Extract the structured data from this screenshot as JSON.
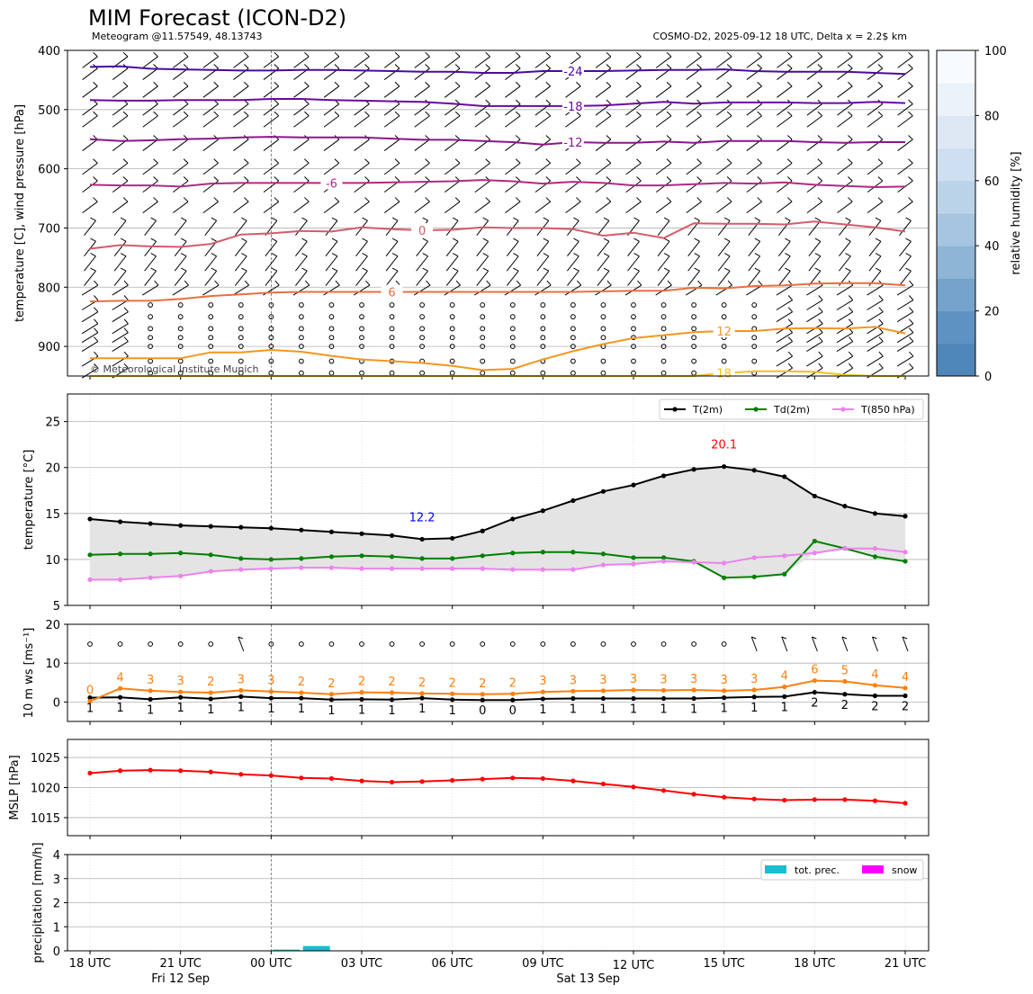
{
  "figure": {
    "title": "MIM Forecast (ICON-D2)",
    "subtitle_left": "Meteogram @11.57549, 48.13743",
    "subtitle_right": "COSMO-D2, 2025-09-12 18 UTC, Delta x = 2.2$ km",
    "copyright": "© Meteorological Institute Munich",
    "time_axis": {
      "ticks": [
        "18 UTC",
        "21 UTC",
        "00 UTC",
        "03 UTC",
        "06 UTC",
        "09 UTC",
        "12 UTC",
        "15 UTC",
        "18 UTC",
        "21 UTC"
      ],
      "tick_hours": [
        0,
        3,
        6,
        9,
        12,
        15,
        18,
        21,
        24,
        27
      ],
      "dates": [
        {
          "label": "Fri 12 Sep",
          "hour": 3
        },
        {
          "label": "Sat 13 Sep",
          "hour": 16.5
        }
      ],
      "midnight_hour": 6
    },
    "colors": {
      "t2m": "#000000",
      "td2m": "#008000",
      "t850": "#ee82ee",
      "ws_line": "#ff7f0e",
      "ws_label": "#ff7f0e",
      "mslp": "#ff0000",
      "precip": "#17becf",
      "snow": "#ff00ff",
      "tmin_label": "#0000ff",
      "tmax_label": "#ff0000"
    }
  },
  "chart_data": [
    {
      "type": "line",
      "panel": "upper-air",
      "ylabel": "temperature [C], wind pressure [hPa]",
      "ylim": [
        950,
        400
      ],
      "yticks": [
        400,
        500,
        600,
        700,
        800,
        900
      ],
      "colorbar": {
        "label": "relative humidity [%]",
        "ticks": [
          0,
          20,
          40,
          60,
          80,
          100
        ]
      },
      "wind_levels": [
        420,
        440,
        470,
        500,
        520,
        560,
        600,
        630,
        665,
        700,
        735,
        760,
        785,
        805,
        830,
        850,
        870,
        885,
        900,
        925,
        945
      ],
      "isotherms": [
        {
          "label": "-24",
          "color": "#4b0a9e",
          "label_hour": 16,
          "values": [
            428,
            427,
            431,
            432,
            433,
            434,
            434,
            433,
            433,
            434,
            435,
            436,
            436,
            438,
            438,
            435,
            435,
            435,
            434,
            433,
            433,
            432,
            435,
            436,
            436,
            436,
            438,
            440
          ]
        },
        {
          "label": "-18",
          "color": "#6a0a9e",
          "label_hour": 16,
          "values": [
            484,
            485,
            485,
            484,
            484,
            484,
            482,
            482,
            484,
            485,
            486,
            487,
            490,
            494,
            494,
            494,
            494,
            493,
            490,
            487,
            490,
            488,
            488,
            488,
            489,
            489,
            487,
            489
          ]
        },
        {
          "label": "-12",
          "color": "#8a168c",
          "label_hour": 16,
          "values": [
            550,
            553,
            552,
            550,
            549,
            547,
            546,
            547,
            547,
            547,
            549,
            551,
            551,
            553,
            555,
            559,
            555,
            556,
            556,
            554,
            556,
            553,
            553,
            553,
            555,
            556,
            555,
            555
          ]
        },
        {
          "label": "-6",
          "color": "#b02a84",
          "label_hour": 8,
          "values": [
            627,
            628,
            628,
            630,
            625,
            624,
            624,
            624,
            624,
            624,
            623,
            622,
            621,
            619,
            621,
            625,
            622,
            624,
            628,
            628,
            626,
            624,
            625,
            623,
            627,
            629,
            631,
            630
          ]
        },
        {
          "label": "0",
          "color": "#d55a6a",
          "label_hour": 11,
          "values": [
            735,
            729,
            731,
            732,
            727,
            711,
            709,
            705,
            706,
            699,
            702,
            704,
            703,
            699,
            700,
            700,
            702,
            713,
            708,
            717,
            692,
            693,
            693,
            694,
            689,
            694,
            699,
            706
          ]
        },
        {
          "label": "6",
          "color": "#e8703e",
          "label_hour": 10,
          "values": [
            824,
            823,
            823,
            820,
            815,
            812,
            809,
            808,
            808,
            808,
            808,
            808,
            808,
            808,
            808,
            808,
            808,
            807,
            806,
            806,
            801,
            802,
            798,
            797,
            794,
            793,
            793,
            797
          ]
        },
        {
          "label": "12",
          "color": "#f5961e",
          "label_hour": 21,
          "values": [
            920,
            920,
            920,
            920,
            910,
            910,
            906,
            909,
            916,
            922,
            925,
            928,
            933,
            940,
            938,
            922,
            908,
            896,
            886,
            881,
            876,
            874,
            874,
            870,
            869,
            870,
            867,
            878
          ]
        },
        {
          "label": "18",
          "color": "#f2c216",
          "label_hour": 21,
          "values": [
            950,
            950,
            950,
            950,
            950,
            950,
            950,
            950,
            950,
            950,
            950,
            950,
            950,
            950,
            950,
            950,
            950,
            950,
            950,
            950,
            950,
            945,
            942,
            942,
            943,
            948,
            950,
            950
          ]
        }
      ]
    },
    {
      "type": "line",
      "panel": "temperature",
      "ylabel": "temperature [$^\\circ$C]",
      "ylim": [
        5,
        28
      ],
      "yticks": [
        5,
        10,
        15,
        20,
        25
      ],
      "annotations": [
        {
          "text": "12.2",
          "hour": 11,
          "value": 12.2,
          "color": "tmin_label"
        },
        {
          "text": "20.1",
          "hour": 21,
          "value": 20.1,
          "color": "tmax_label"
        }
      ],
      "series": [
        {
          "name": "T(2m)",
          "key": "t2m",
          "values": [
            14.4,
            14.1,
            13.9,
            13.7,
            13.6,
            13.5,
            13.4,
            13.2,
            13.0,
            12.8,
            12.6,
            12.2,
            12.3,
            13.1,
            14.4,
            15.3,
            16.4,
            17.4,
            18.1,
            19.1,
            19.8,
            20.1,
            19.7,
            19.0,
            16.9,
            15.8,
            15.0,
            14.7
          ]
        },
        {
          "name": "Td(2m)",
          "key": "td2m",
          "values": [
            10.5,
            10.6,
            10.6,
            10.7,
            10.5,
            10.1,
            10.0,
            10.1,
            10.3,
            10.4,
            10.3,
            10.1,
            10.1,
            10.4,
            10.7,
            10.8,
            10.8,
            10.6,
            10.2,
            10.2,
            9.8,
            8.0,
            8.1,
            8.4,
            12.0,
            11.2,
            10.3,
            9.8
          ]
        },
        {
          "name": "T(850 hPa)",
          "key": "t850",
          "values": [
            7.8,
            7.8,
            8.0,
            8.2,
            8.7,
            8.9,
            9.0,
            9.1,
            9.1,
            9.0,
            9.0,
            9.0,
            9.0,
            9.0,
            8.9,
            8.9,
            8.9,
            9.4,
            9.5,
            9.8,
            9.7,
            9.6,
            10.2,
            10.4,
            10.7,
            11.2,
            11.2,
            10.8
          ]
        }
      ]
    },
    {
      "type": "line",
      "panel": "wind-10m",
      "ylabel": "10 m ws [ms$^{-1}$]",
      "ylim": [
        -5,
        20
      ],
      "yticks": [
        0,
        10,
        20
      ],
      "series": [
        {
          "name": "ws",
          "key": "ws_line",
          "values": [
            0.2,
            3.5,
            2.9,
            2.6,
            2.4,
            3.0,
            2.7,
            2.4,
            2.0,
            2.5,
            2.4,
            2.2,
            2.1,
            2.0,
            2.1,
            2.6,
            2.8,
            2.9,
            3.1,
            3.0,
            3.1,
            2.9,
            3.1,
            3.9,
            5.5,
            5.3,
            4.3,
            3.6
          ]
        },
        {
          "name": "ws_base",
          "key": "t2m",
          "values": [
            1.1,
            1.2,
            0.7,
            1.2,
            0.8,
            1.4,
            1.0,
            1.0,
            0.6,
            0.7,
            0.6,
            1.0,
            0.6,
            0.5,
            0.5,
            0.8,
            0.9,
            0.9,
            0.9,
            0.9,
            0.9,
            1.1,
            1.3,
            1.4,
            2.5,
            2.0,
            1.6,
            1.6
          ]
        }
      ],
      "upper_labels": [
        "0",
        "4",
        "3",
        "3",
        "2",
        "3",
        "3",
        "2",
        "2",
        "2",
        "2",
        "2",
        "2",
        "2",
        "2",
        "3",
        "3",
        "3",
        "3",
        "3",
        "3",
        "3",
        "3",
        "4",
        "6",
        "5",
        "4",
        "4"
      ],
      "lower_labels": [
        "1",
        "1",
        "1",
        "1",
        "1",
        "1",
        "1",
        "1",
        "1",
        "1",
        "1",
        "1",
        "1",
        "0",
        "0",
        "1",
        "1",
        "1",
        "1",
        "1",
        "1",
        "1",
        "1",
        "1",
        "2",
        "2",
        "2",
        "2"
      ],
      "barbs": [
        "o",
        "o",
        "o",
        "o",
        "o",
        "b",
        "o",
        "o",
        "o",
        "o",
        "o",
        "o",
        "o",
        "o",
        "o",
        "o",
        "o",
        "o",
        "o",
        "o",
        "o",
        "o",
        "b",
        "b",
        "b",
        "b",
        "b",
        "b"
      ]
    },
    {
      "type": "line",
      "panel": "mslp",
      "ylabel": "MSLP [hPa]",
      "ylim": [
        1012,
        1028
      ],
      "yticks": [
        1015,
        1020,
        1025
      ],
      "series": [
        {
          "name": "MSLP",
          "key": "mslp",
          "values": [
            1022.4,
            1022.8,
            1022.9,
            1022.8,
            1022.6,
            1022.2,
            1022.0,
            1021.6,
            1021.5,
            1021.1,
            1020.9,
            1021.0,
            1021.2,
            1021.4,
            1021.6,
            1021.5,
            1021.1,
            1020.6,
            1020.1,
            1019.5,
            1018.9,
            1018.4,
            1018.1,
            1017.9,
            1018.0,
            1018.0,
            1017.8,
            1017.4
          ]
        }
      ]
    },
    {
      "type": "bar",
      "panel": "precipitation",
      "ylabel": "precipitation [mm/h]",
      "ylim": [
        0,
        4
      ],
      "yticks": [
        0,
        1,
        2,
        3,
        4
      ],
      "legend": [
        "tot. prec.",
        "snow"
      ],
      "series": [
        {
          "name": "tot. prec.",
          "key": "precip",
          "values": [
            0,
            0.02,
            0,
            0,
            0,
            0,
            0.05,
            0.2,
            0,
            0,
            0,
            0,
            0,
            0,
            0,
            0,
            0.02,
            0,
            0,
            0,
            0,
            0,
            0,
            0,
            0,
            0,
            0,
            0
          ]
        },
        {
          "name": "snow",
          "key": "snow",
          "values": [
            0,
            0,
            0,
            0,
            0,
            0,
            0,
            0,
            0,
            0,
            0,
            0,
            0,
            0,
            0,
            0,
            0,
            0,
            0,
            0,
            0,
            0,
            0,
            0,
            0,
            0,
            0,
            0
          ]
        }
      ]
    }
  ]
}
